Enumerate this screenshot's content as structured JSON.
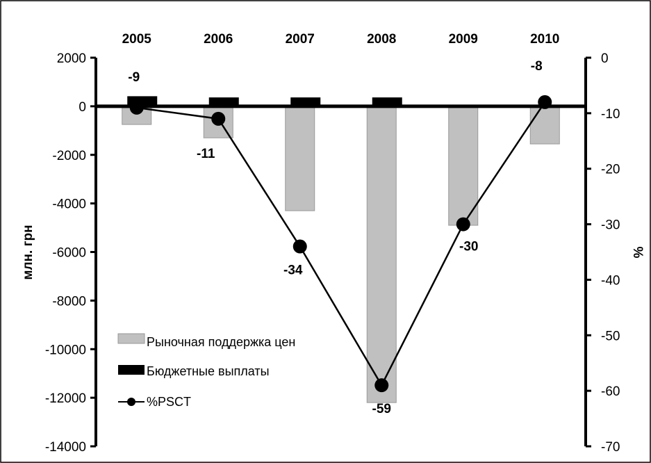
{
  "chart_data": {
    "type": "bar",
    "categories": [
      "2005",
      "2006",
      "2007",
      "2008",
      "2009",
      "2010"
    ],
    "series": [
      {
        "name": "Рыночная поддержка цен",
        "kind": "bar",
        "axis": "left",
        "color": "#c0c0c0",
        "values": [
          -750,
          -1300,
          -4300,
          -12200,
          -4900,
          -1550
        ]
      },
      {
        "name": "Бюджетные выплаты",
        "kind": "bar",
        "axis": "left",
        "color": "#000000",
        "values": [
          400,
          350,
          350,
          350,
          0,
          0
        ]
      },
      {
        "name": "%PSCT",
        "kind": "line",
        "axis": "right",
        "color": "#000000",
        "values": [
          -9,
          -11,
          -34,
          -59,
          -30,
          -8
        ]
      }
    ],
    "data_labels": [
      "-9",
      "-11",
      "-34",
      "-59",
      "-30",
      "-8"
    ],
    "ylabel": "млн. грн",
    "y2label": "%",
    "ylim": [
      -14000,
      2000
    ],
    "y2lim": [
      -70,
      0
    ],
    "yticks": [
      2000,
      0,
      -2000,
      -4000,
      -6000,
      -8000,
      -10000,
      -12000,
      -14000
    ],
    "y2ticks": [
      0,
      -10,
      -20,
      -30,
      -40,
      -50,
      -60,
      -70
    ],
    "legend_position": "bottom-left"
  }
}
